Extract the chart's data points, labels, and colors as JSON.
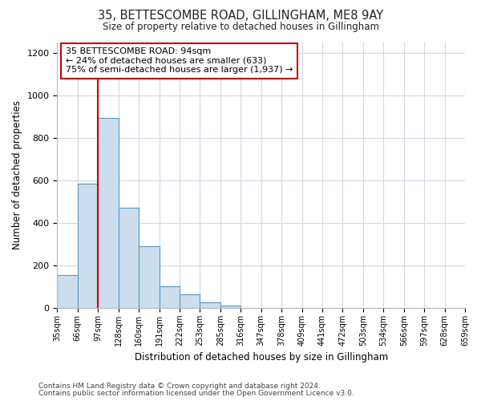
{
  "title": "35, BETTESCOMBE ROAD, GILLINGHAM, ME8 9AY",
  "subtitle": "Size of property relative to detached houses in Gillingham",
  "xlabel": "Distribution of detached houses by size in Gillingham",
  "ylabel": "Number of detached properties",
  "bin_labels": [
    "35sqm",
    "66sqm",
    "97sqm",
    "128sqm",
    "160sqm",
    "191sqm",
    "222sqm",
    "253sqm",
    "285sqm",
    "316sqm",
    "347sqm",
    "378sqm",
    "409sqm",
    "441sqm",
    "472sqm",
    "503sqm",
    "534sqm",
    "566sqm",
    "597sqm",
    "628sqm",
    "659sqm"
  ],
  "bar_heights": [
    155,
    585,
    895,
    470,
    290,
    103,
    63,
    27,
    12,
    0,
    0,
    0,
    0,
    0,
    0,
    0,
    0,
    0,
    0,
    0
  ],
  "bar_color": "#ccdded",
  "bar_edge_color": "#5599cc",
  "vline_x_idx": 2,
  "vline_color": "#cc0000",
  "annotation_title": "35 BETTESCOMBE ROAD: 94sqm",
  "annotation_line1": "← 24% of detached houses are smaller (633)",
  "annotation_line2": "75% of semi-detached houses are larger (1,937) →",
  "annotation_box_facecolor": "#ffffff",
  "annotation_box_edgecolor": "#cc0000",
  "ylim": [
    0,
    1250
  ],
  "yticks": [
    0,
    200,
    400,
    600,
    800,
    1000,
    1200
  ],
  "footer1": "Contains HM Land Registry data © Crown copyright and database right 2024.",
  "footer2": "Contains public sector information licensed under the Open Government Licence v3.0.",
  "background_color": "#ffffff",
  "plot_background": "#ffffff",
  "grid_color": "#d0d8e4"
}
